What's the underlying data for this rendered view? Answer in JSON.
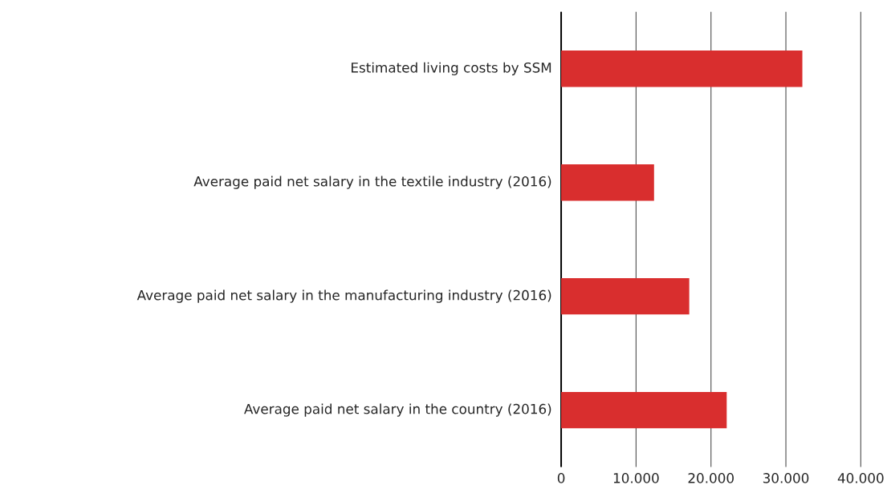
{
  "chart_data": {
    "type": "bar",
    "orientation": "horizontal",
    "categories": [
      "Estimated living costs by SSM",
      "Average paid net salary in the textile industry (2016)",
      "Average paid net salary in the manufacturing industry (2016)",
      "Average paid net salary in the country (2016)"
    ],
    "values": [
      32200,
      12400,
      17100,
      22100
    ],
    "color": "#d92e2e",
    "xlim": [
      0,
      40000
    ],
    "xticks": [
      0,
      {
        "value": 10000,
        "label": "10.000"
      },
      {
        "value": 20000,
        "label": "20.000"
      },
      {
        "value": 30000,
        "label": "30.000"
      },
      {
        "value": 40000,
        "label": "40.000"
      }
    ],
    "grid": "x"
  }
}
